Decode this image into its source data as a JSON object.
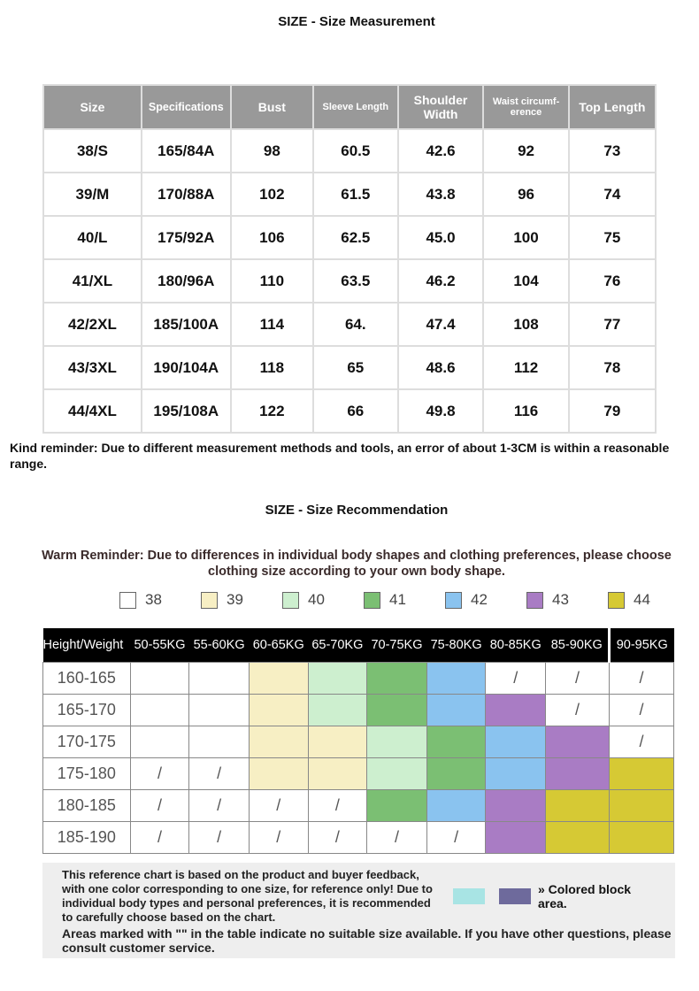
{
  "title1": "SIZE - Size Measurement",
  "measure": {
    "headers": [
      "Size",
      "Specifications",
      "Bust",
      "Sleeve Length",
      "Shoulder Width",
      "Waist circumf-erence",
      "Top Length"
    ],
    "rows": [
      [
        "38/S",
        "165/84A",
        "98",
        "60.5",
        "42.6",
        "92",
        "73"
      ],
      [
        "39/M",
        "170/88A",
        "102",
        "61.5",
        "43.8",
        "96",
        "74"
      ],
      [
        "40/L",
        "175/92A",
        "106",
        "62.5",
        "45.0",
        "100",
        "75"
      ],
      [
        "41/XL",
        "180/96A",
        "110",
        "63.5",
        "46.2",
        "104",
        "76"
      ],
      [
        "42/2XL",
        "185/100A",
        "114",
        "64.",
        "47.4",
        "108",
        "77"
      ],
      [
        "43/3XL",
        "190/104A",
        "118",
        "65",
        "48.6",
        "112",
        "78"
      ],
      [
        "44/4XL",
        "195/108A",
        "122",
        "66",
        "49.8",
        "116",
        "79"
      ]
    ]
  },
  "kind_reminder": "Kind reminder: Due to different measurement methods and tools, an error of about 1-3CM is within a reasonable range.",
  "title2": "SIZE - Size Recommendation",
  "warm_reminder": "Warm Reminder: Due to differences in individual body shapes and clothing preferences, please choose clothing size according to your own body shape.",
  "colors": {
    "38": "#ffffff",
    "39": "#f7efc4",
    "40": "#cdefcf",
    "41": "#7bbf73",
    "42": "#8ac3ef",
    "43": "#a97cc4",
    "44": "#d6c934"
  },
  "legend": [
    "38",
    "39",
    "40",
    "41",
    "42",
    "43",
    "44"
  ],
  "recommend": {
    "headers": [
      "Height/Weight",
      "50-55KG",
      "55-60KG",
      "60-65KG",
      "65-70KG",
      "70-75KG",
      "75-80KG",
      "80-85KG",
      "85-90KG",
      "90-95KG"
    ],
    "rows": [
      {
        "height": "160-165",
        "cells": [
          "",
          "",
          "39",
          "40",
          "41",
          "42",
          "/",
          "/",
          "/"
        ]
      },
      {
        "height": "165-170",
        "cells": [
          "",
          "",
          "39",
          "40",
          "41",
          "42",
          "43",
          "/",
          "/"
        ]
      },
      {
        "height": "170-175",
        "cells": [
          "",
          "",
          "39",
          "39",
          "40",
          "41",
          "42",
          "43",
          "/"
        ]
      },
      {
        "height": "175-180",
        "cells": [
          "/",
          "/",
          "39",
          "39",
          "40",
          "41",
          "42",
          "43",
          "44"
        ]
      },
      {
        "height": "180-185",
        "cells": [
          "/",
          "/",
          "/",
          "/",
          "41",
          "42",
          "43",
          "44",
          "44"
        ]
      },
      {
        "height": "185-190",
        "cells": [
          "/",
          "/",
          "/",
          "/",
          "/",
          "/",
          "43",
          "44",
          "44"
        ]
      }
    ]
  },
  "note": {
    "text1": "This reference chart is based on the product and buyer feedback, with one color corresponding to one size, for reference only! Due to individual body types and personal preferences, it is recommended to carefully choose based on the chart.",
    "colored_label": "» Colored block area.",
    "text2": "Areas marked with \"\" in the table indicate no suitable size available. If you have other questions, please consult customer service."
  }
}
